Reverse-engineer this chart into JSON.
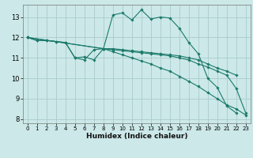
{
  "xlabel": "Humidex (Indice chaleur)",
  "bg_color": "#cce8e8",
  "grid_color": "#aacccc",
  "line_color": "#1a7a6a",
  "xlim": [
    -0.5,
    23.5
  ],
  "ylim": [
    7.8,
    13.6
  ],
  "yticks": [
    8,
    9,
    10,
    11,
    12,
    13
  ],
  "xticks": [
    0,
    1,
    2,
    3,
    4,
    5,
    6,
    7,
    8,
    9,
    10,
    11,
    12,
    13,
    14,
    15,
    16,
    17,
    18,
    19,
    20,
    21,
    22,
    23
  ],
  "lines": [
    {
      "x": [
        0,
        1,
        2,
        3,
        4,
        5,
        6,
        7,
        8,
        9,
        10,
        11,
        12,
        13,
        14,
        15,
        16,
        17,
        18,
        19,
        20,
        21,
        22
      ],
      "y": [
        12.0,
        11.85,
        11.85,
        11.8,
        11.75,
        11.0,
        11.05,
        10.9,
        11.45,
        13.1,
        13.2,
        12.85,
        13.35,
        12.9,
        13.0,
        12.95,
        12.45,
        11.75,
        11.2,
        10.0,
        9.55,
        8.65,
        8.3
      ]
    },
    {
      "x": [
        0,
        1,
        2,
        3,
        4,
        5,
        6,
        7,
        8,
        9,
        10,
        11,
        12,
        13,
        14,
        15,
        16,
        17,
        18,
        19,
        20,
        21,
        22,
        23
      ],
      "y": [
        12.0,
        11.85,
        11.85,
        11.8,
        11.75,
        11.0,
        10.9,
        11.4,
        11.45,
        11.45,
        11.4,
        11.35,
        11.3,
        11.25,
        11.2,
        11.15,
        11.1,
        11.0,
        10.9,
        10.7,
        10.5,
        10.35,
        10.15,
        null
      ]
    },
    {
      "x": [
        0,
        8,
        9,
        10,
        11,
        12,
        13,
        14,
        15,
        16,
        17,
        18,
        19,
        20,
        21,
        22,
        23
      ],
      "y": [
        12.0,
        11.45,
        11.4,
        11.35,
        11.3,
        11.25,
        11.2,
        11.15,
        11.1,
        11.0,
        10.9,
        10.7,
        10.55,
        10.35,
        10.15,
        9.5,
        8.3
      ]
    },
    {
      "x": [
        0,
        8,
        9,
        10,
        11,
        12,
        13,
        14,
        15,
        16,
        17,
        18,
        19,
        20,
        21,
        22,
        23
      ],
      "y": [
        12.0,
        11.45,
        11.3,
        11.15,
        11.0,
        10.85,
        10.7,
        10.5,
        10.35,
        10.1,
        9.85,
        9.6,
        9.3,
        9.0,
        8.7,
        8.5,
        8.2
      ]
    }
  ]
}
